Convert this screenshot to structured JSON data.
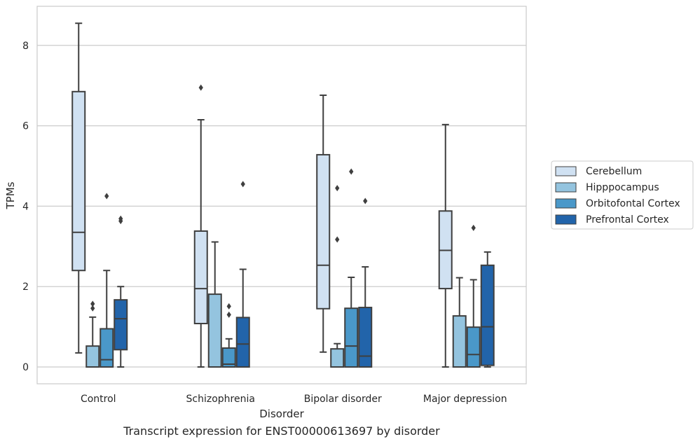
{
  "caption": "Transcript expression for ENST00000613697 by disorder",
  "chart_data": {
    "type": "box",
    "xlabel": "Disorder",
    "ylabel": "TPMs",
    "ylim": [
      -0.42,
      8.97
    ],
    "yticks": [
      0,
      2,
      4,
      6,
      8
    ],
    "grid": "horizontal",
    "legend_position": "right",
    "categories": [
      "Control",
      "Schizophrenia",
      "Bipolar disorder",
      "Major depression"
    ],
    "series": [
      {
        "name": "Cerebellum",
        "color": "#d0e1f2",
        "boxes": [
          {
            "whisker_low": 0.35,
            "q1": 2.4,
            "median": 3.35,
            "q3": 6.85,
            "whisker_high": 8.55,
            "outliers": []
          },
          {
            "whisker_low": 0.0,
            "q1": 1.08,
            "median": 1.95,
            "q3": 3.38,
            "whisker_high": 6.15,
            "outliers": [
              6.95
            ]
          },
          {
            "whisker_low": 0.37,
            "q1": 1.45,
            "median": 2.53,
            "q3": 5.28,
            "whisker_high": 6.76,
            "outliers": []
          },
          {
            "whisker_low": 0.0,
            "q1": 1.95,
            "median": 2.9,
            "q3": 3.88,
            "whisker_high": 6.03,
            "outliers": []
          }
        ]
      },
      {
        "name": "Hipppocampus",
        "color": "#94c4df",
        "boxes": [
          {
            "whisker_low": 0.0,
            "q1": 0.0,
            "median": 0.0,
            "q3": 0.52,
            "whisker_high": 1.24,
            "outliers": [
              1.46,
              1.57
            ]
          },
          {
            "whisker_low": 0.0,
            "q1": 0.0,
            "median": 0.0,
            "q3": 1.81,
            "whisker_high": 3.11,
            "outliers": []
          },
          {
            "whisker_low": 0.0,
            "q1": 0.0,
            "median": 0.0,
            "q3": 0.45,
            "whisker_high": 0.58,
            "outliers": [
              3.17,
              4.45
            ]
          },
          {
            "whisker_low": 0.0,
            "q1": 0.0,
            "median": 0.0,
            "q3": 1.27,
            "whisker_high": 2.22,
            "outliers": []
          }
        ]
      },
      {
        "name": "Orbitofontal Cortex",
        "color": "#4a98c9",
        "boxes": [
          {
            "whisker_low": 0.0,
            "q1": 0.0,
            "median": 0.18,
            "q3": 0.95,
            "whisker_high": 2.4,
            "outliers": [
              4.25
            ]
          },
          {
            "whisker_low": 0.0,
            "q1": 0.0,
            "median": 0.07,
            "q3": 0.47,
            "whisker_high": 0.7,
            "outliers": [
              1.3,
              1.51
            ]
          },
          {
            "whisker_low": 0.0,
            "q1": 0.0,
            "median": 0.52,
            "q3": 1.46,
            "whisker_high": 2.23,
            "outliers": [
              4.86
            ]
          },
          {
            "whisker_low": 0.0,
            "q1": 0.0,
            "median": 0.31,
            "q3": 0.99,
            "whisker_high": 2.17,
            "outliers": [
              3.46
            ]
          }
        ]
      },
      {
        "name": "Prefrontal Cortex",
        "color": "#2264aa",
        "boxes": [
          {
            "whisker_low": 0.0,
            "q1": 0.43,
            "median": 1.2,
            "q3": 1.67,
            "whisker_high": 2.0,
            "outliers": [
              3.63,
              3.69
            ]
          },
          {
            "whisker_low": 0.0,
            "q1": 0.0,
            "median": 0.57,
            "q3": 1.23,
            "whisker_high": 2.43,
            "outliers": [
              4.55
            ]
          },
          {
            "whisker_low": 0.0,
            "q1": 0.0,
            "median": 0.27,
            "q3": 1.48,
            "whisker_high": 2.49,
            "outliers": [
              4.13
            ]
          },
          {
            "whisker_low": 0.0,
            "q1": 0.04,
            "median": 1.0,
            "q3": 2.53,
            "whisker_high": 2.86,
            "outliers": []
          }
        ]
      }
    ]
  }
}
